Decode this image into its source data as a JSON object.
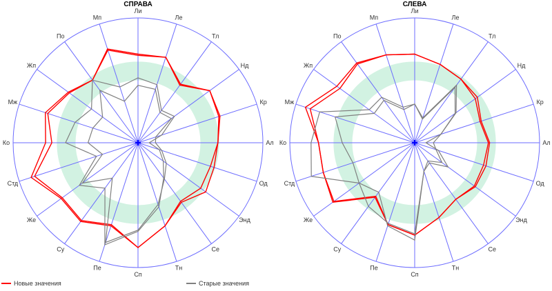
{
  "colors": {
    "axis": "#6b6bff",
    "band": "#d2f2e2",
    "new": "#ff0000",
    "old": "#7f7f7f",
    "center": "#0000ff"
  },
  "legend": {
    "new_label": "Новые значения",
    "old_label": "Старые значения"
  },
  "chart_data": [
    {
      "type": "radar",
      "title": "СПРАВА",
      "axes": [
        "Ли",
        "Ле",
        "Тл",
        "Нд",
        "Кр",
        "Ал",
        "Од",
        "Энд",
        "Се",
        "Тн",
        "Сп",
        "Пе",
        "Су",
        "Же",
        "Стд",
        "Ко",
        "Мж",
        "Жп",
        "По",
        "Мп"
      ],
      "range": [
        0,
        1
      ],
      "band": [
        0.5,
        0.65
      ],
      "series": [
        {
          "name": "Новые значения",
          "group": "new",
          "values": [
            0.71,
            0.72,
            0.58,
            0.71,
            0.69,
            0.64,
            0.64,
            0.67,
            0.59,
            0.7,
            0.84,
            0.7,
            0.78,
            0.76,
            0.9,
            0.74,
            0.78,
            0.69,
            0.62,
            0.79
          ]
        },
        {
          "name": "Новые значения",
          "group": "new",
          "values": [
            0.7,
            0.72,
            0.57,
            0.71,
            0.68,
            0.64,
            0.61,
            0.62,
            0.58,
            0.7,
            0.84,
            0.69,
            0.77,
            0.75,
            0.87,
            0.69,
            0.76,
            0.68,
            0.62,
            0.78
          ]
        },
        {
          "name": "Старые значения",
          "group": "old",
          "values": [
            0.52,
            0.49,
            0.32,
            0.36,
            0.2,
            0.09,
            0.18,
            0.25,
            0.35,
            0.54,
            0.71,
            0.86,
            0.45,
            0.58,
            0.35,
            0.58,
            0.53,
            0.46,
            0.62,
            0.47
          ]
        },
        {
          "name": "Старые значения",
          "group": "old",
          "values": [
            0.46,
            0.45,
            0.3,
            0.33,
            0.15,
            0.14,
            0.2,
            0.28,
            0.36,
            0.52,
            0.7,
            0.84,
            0.35,
            0.55,
            0.3,
            0.4,
            0.38,
            0.35,
            0.52,
            0.35
          ]
        }
      ]
    },
    {
      "type": "radar",
      "title": "СЛЕВА",
      "axes": [
        "Ли",
        "Ле",
        "Тл",
        "Нд",
        "Кр",
        "Ал",
        "Од",
        "Энд",
        "Се",
        "Тн",
        "Сп",
        "Пе",
        "Су",
        "Же",
        "Стд",
        "Ко",
        "Мж",
        "Жп",
        "По",
        "Мп"
      ],
      "range": [
        0,
        1
      ],
      "band": [
        0.5,
        0.65
      ],
      "series": [
        {
          "name": "Новые значения",
          "group": "new",
          "values": [
            0.71,
            0.66,
            0.63,
            0.62,
            0.56,
            0.6,
            0.6,
            0.6,
            0.56,
            0.63,
            0.74,
            0.69,
            0.54,
            0.81,
            0.77,
            0.77,
            0.92,
            0.77,
            0.79,
            0.74
          ]
        },
        {
          "name": "Новые значения",
          "group": "new",
          "values": [
            0.71,
            0.66,
            0.63,
            0.6,
            0.55,
            0.59,
            0.58,
            0.59,
            0.56,
            0.63,
            0.74,
            0.69,
            0.53,
            0.8,
            0.77,
            0.77,
            0.88,
            0.74,
            0.78,
            0.74
          ]
        },
        {
          "name": "Старые значения",
          "group": "old",
          "values": [
            0.31,
            0.21,
            0.57,
            0.41,
            0.22,
            0.09,
            0.2,
            0.33,
            0.2,
            0.24,
            0.78,
            0.7,
            0.49,
            0.55,
            0.87,
            0.83,
            0.8,
            0.45,
            0.45,
            0.3
          ]
        },
        {
          "name": "Старые значения",
          "group": "old",
          "values": [
            0.31,
            0.2,
            0.55,
            0.4,
            0.22,
            0.15,
            0.18,
            0.27,
            0.18,
            0.24,
            0.73,
            0.68,
            0.63,
            0.55,
            0.52,
            0.58,
            0.67,
            0.4,
            0.42,
            0.28
          ]
        }
      ]
    }
  ]
}
